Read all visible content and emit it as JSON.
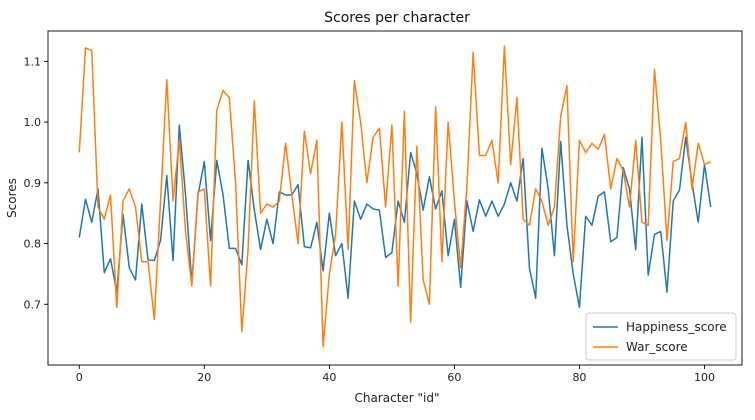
{
  "chart_data": {
    "type": "line",
    "title": "Scores per character",
    "xlabel": "Character \"id\"",
    "ylabel": "Scores",
    "xlim": [
      -5,
      106
    ],
    "ylim": [
      0.6,
      1.15
    ],
    "xticks": [
      0,
      20,
      40,
      60,
      80,
      100
    ],
    "yticks": [
      0.7,
      0.8,
      0.9,
      1.0,
      1.1
    ],
    "ytick_labels": [
      "0.7",
      "0.8",
      "0.9",
      "1.0",
      "1.1"
    ],
    "grid": false,
    "legend_position": "lower-right",
    "x": [
      0,
      1,
      2,
      3,
      4,
      5,
      6,
      7,
      8,
      9,
      10,
      11,
      12,
      13,
      14,
      15,
      16,
      17,
      18,
      19,
      20,
      21,
      22,
      23,
      24,
      25,
      26,
      27,
      28,
      29,
      30,
      31,
      32,
      33,
      34,
      35,
      36,
      37,
      38,
      39,
      40,
      41,
      42,
      43,
      44,
      45,
      46,
      47,
      48,
      49,
      50,
      51,
      52,
      53,
      54,
      55,
      56,
      57,
      58,
      59,
      60,
      61,
      62,
      63,
      64,
      65,
      66,
      67,
      68,
      69,
      70,
      71,
      72,
      73,
      74,
      75,
      76,
      77,
      78,
      79,
      80,
      81,
      82,
      83,
      84,
      85,
      86,
      87,
      88,
      89,
      90,
      91,
      92,
      93,
      94,
      95,
      96,
      97,
      98,
      99,
      100,
      101
    ],
    "series": [
      {
        "name": "Happiness_score",
        "color": "#1f77b4",
        "values": [
          0.81,
          0.873,
          0.835,
          0.89,
          0.752,
          0.775,
          0.72,
          0.848,
          0.76,
          0.74,
          0.865,
          0.773,
          0.772,
          0.805,
          0.912,
          0.772,
          0.995,
          0.88,
          0.735,
          0.88,
          0.935,
          0.805,
          0.937,
          0.88,
          0.792,
          0.792,
          0.765,
          0.937,
          0.855,
          0.79,
          0.84,
          0.8,
          0.885,
          0.88,
          0.88,
          0.897,
          0.795,
          0.793,
          0.835,
          0.755,
          0.85,
          0.78,
          0.8,
          0.71,
          0.87,
          0.84,
          0.865,
          0.857,
          0.855,
          0.777,
          0.785,
          0.87,
          0.835,
          0.95,
          0.915,
          0.855,
          0.91,
          0.857,
          0.887,
          0.78,
          0.84,
          0.728,
          0.87,
          0.82,
          0.872,
          0.845,
          0.87,
          0.845,
          0.865,
          0.9,
          0.87,
          0.94,
          0.76,
          0.71,
          0.957,
          0.89,
          0.78,
          0.968,
          0.83,
          0.75,
          0.695,
          0.845,
          0.83,
          0.878,
          0.885,
          0.803,
          0.81,
          0.925,
          0.89,
          0.79,
          0.975,
          0.748,
          0.815,
          0.82,
          0.72,
          0.87,
          0.888,
          0.975,
          0.9,
          0.835,
          0.93,
          0.86
        ]
      },
      {
        "name": "War_score",
        "color": "#ff7f0e",
        "values": [
          0.95,
          1.122,
          1.118,
          0.86,
          0.84,
          0.88,
          0.695,
          0.87,
          0.89,
          0.86,
          0.77,
          0.77,
          0.675,
          0.87,
          1.07,
          0.87,
          0.97,
          0.82,
          0.73,
          0.885,
          0.89,
          0.73,
          1.02,
          1.052,
          1.04,
          0.9,
          0.655,
          0.79,
          1.035,
          0.85,
          0.865,
          0.86,
          0.87,
          0.965,
          0.88,
          0.8,
          0.985,
          0.915,
          0.97,
          0.63,
          0.75,
          0.815,
          1.0,
          0.79,
          1.068,
          1.0,
          0.9,
          0.975,
          0.99,
          0.86,
          0.995,
          0.73,
          1.018,
          0.67,
          0.96,
          0.74,
          0.7,
          1.025,
          0.77,
          1.0,
          0.87,
          0.76,
          0.895,
          1.115,
          0.945,
          0.945,
          0.97,
          0.9,
          1.125,
          0.93,
          1.04,
          0.84,
          0.83,
          0.89,
          0.87,
          0.83,
          0.86,
          1.01,
          1.06,
          0.77,
          0.97,
          0.95,
          0.965,
          0.955,
          0.98,
          0.89,
          0.94,
          0.92,
          0.86,
          0.97,
          0.835,
          0.83,
          1.087,
          0.97,
          0.805,
          0.935,
          0.94,
          1.0,
          0.89,
          0.965,
          0.93,
          0.935
        ]
      }
    ]
  }
}
